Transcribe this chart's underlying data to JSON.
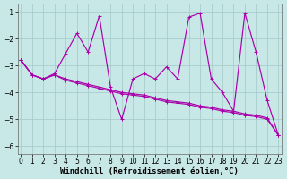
{
  "xlabel": "Windchill (Refroidissement éolien,°C)",
  "xlim": [
    -0.3,
    23.3
  ],
  "ylim": [
    -6.3,
    -0.7
  ],
  "yticks": [
    -6,
    -5,
    -4,
    -3,
    -2,
    -1
  ],
  "xticks": [
    0,
    1,
    2,
    3,
    4,
    5,
    6,
    7,
    8,
    9,
    10,
    11,
    12,
    13,
    14,
    15,
    16,
    17,
    18,
    19,
    20,
    21,
    22,
    23
  ],
  "background_color": "#c8e8e8",
  "grid_color": "#a8cccc",
  "line_color": "#aa00aa",
  "series1_x": [
    0,
    1,
    2,
    3,
    4,
    5,
    6,
    7,
    8,
    9,
    10,
    11,
    12,
    13,
    14,
    15,
    16,
    17,
    18,
    19,
    20,
    21,
    22,
    23
  ],
  "series1_y": [
    -2.8,
    -3.35,
    -3.5,
    -3.3,
    -2.55,
    -1.8,
    -2.5,
    -1.15,
    -3.8,
    -5.0,
    -3.5,
    -3.3,
    -3.5,
    -3.05,
    -3.5,
    -1.2,
    -1.05,
    -3.5,
    -4.0,
    -4.7,
    -1.05,
    -2.5,
    -4.3,
    -5.6
  ],
  "series2_x": [
    0,
    1,
    2,
    3,
    4,
    5,
    6,
    7,
    8,
    9,
    10,
    11,
    12,
    13,
    14,
    15,
    16,
    17,
    18,
    19,
    20,
    21,
    22,
    23
  ],
  "series2_y": [
    -2.8,
    -3.35,
    -3.5,
    -3.35,
    -3.5,
    -3.6,
    -3.7,
    -3.8,
    -3.9,
    -4.0,
    -4.05,
    -4.1,
    -4.2,
    -4.3,
    -4.35,
    -4.4,
    -4.5,
    -4.55,
    -4.65,
    -4.7,
    -4.8,
    -4.85,
    -4.95,
    -5.6
  ],
  "series3_x": [
    0,
    1,
    2,
    3,
    4,
    5,
    6,
    7,
    8,
    9,
    10,
    11,
    12,
    13,
    14,
    15,
    16,
    17,
    18,
    19,
    20,
    21,
    22,
    23
  ],
  "series3_y": [
    -2.8,
    -3.35,
    -3.5,
    -3.35,
    -3.55,
    -3.65,
    -3.75,
    -3.85,
    -3.95,
    -4.05,
    -4.1,
    -4.15,
    -4.25,
    -4.35,
    -4.4,
    -4.45,
    -4.55,
    -4.6,
    -4.7,
    -4.75,
    -4.85,
    -4.9,
    -5.0,
    -5.6
  ],
  "linewidth": 0.85,
  "tick_fontsize": 5.5,
  "label_fontsize": 6.5
}
